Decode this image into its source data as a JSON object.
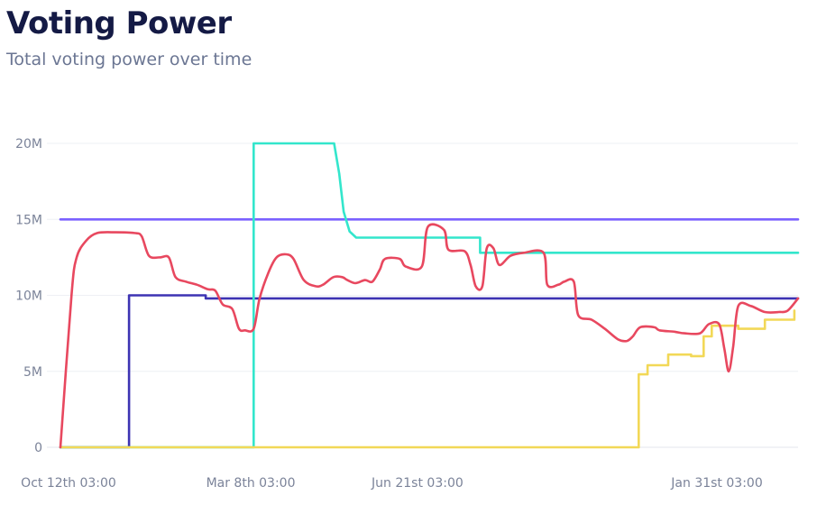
{
  "header": {
    "title": "Voting Power",
    "subtitle": "Total voting power over time"
  },
  "chart_data": {
    "type": "line",
    "title": "Voting Power",
    "subtitle": "Total voting power over time",
    "xlabel": "",
    "ylabel": "",
    "x_domain": [
      0,
      100
    ],
    "ylim": [
      0,
      20000000
    ],
    "y_ticks": [
      {
        "value": 0,
        "label": "0"
      },
      {
        "value": 5000000,
        "label": "5M"
      },
      {
        "value": 10000000,
        "label": "10M"
      },
      {
        "value": 15000000,
        "label": "15M"
      },
      {
        "value": 20000000,
        "label": "20M"
      }
    ],
    "x_ticks": [
      {
        "value": 1.1,
        "label": "Oct 12th 03:00"
      },
      {
        "value": 25.8,
        "label": "Mar 8th 03:00"
      },
      {
        "value": 48.4,
        "label": "Jun 21st 03:00"
      },
      {
        "value": 89.0,
        "label": "Jan 31st 03:00"
      }
    ],
    "grid": true,
    "legend": "none",
    "series": [
      {
        "color": "#7b61ff",
        "shape": "linear",
        "points": [
          [
            0,
            15000000
          ],
          [
            100,
            15000000
          ]
        ]
      },
      {
        "color": "#3d33b3",
        "shape": "linear",
        "points": [
          [
            0,
            0
          ],
          [
            9.3,
            0
          ],
          [
            9.3,
            10000000
          ],
          [
            19.7,
            10000000
          ],
          [
            19.7,
            9800000
          ],
          [
            100,
            9800000
          ]
        ]
      },
      {
        "color": "#33e6cc",
        "shape": "linear",
        "points": [
          [
            0,
            0
          ],
          [
            26.2,
            0
          ],
          [
            26.2,
            20000000
          ],
          [
            37.1,
            20000000
          ],
          [
            37.8,
            18000000
          ],
          [
            38.4,
            15500000
          ],
          [
            39.2,
            14200000
          ],
          [
            40.1,
            13800000
          ],
          [
            56.9,
            13800000
          ],
          [
            56.9,
            12800000
          ],
          [
            100,
            12800000
          ]
        ]
      },
      {
        "color": "#f2d857",
        "shape": "linear",
        "points": [
          [
            0,
            0
          ],
          [
            78.4,
            0
          ],
          [
            78.4,
            4800000
          ],
          [
            79.6,
            4800000
          ],
          [
            79.6,
            5400000
          ],
          [
            82.4,
            5400000
          ],
          [
            82.4,
            6100000
          ],
          [
            85.5,
            6100000
          ],
          [
            85.5,
            6000000
          ],
          [
            87.2,
            6000000
          ],
          [
            87.2,
            7300000
          ],
          [
            88.3,
            7300000
          ],
          [
            88.3,
            8000000
          ],
          [
            91.9,
            8000000
          ],
          [
            91.9,
            7800000
          ],
          [
            95.5,
            7800000
          ],
          [
            95.5,
            8400000
          ],
          [
            99.5,
            8400000
          ],
          [
            99.5,
            9000000
          ]
        ]
      },
      {
        "color": "#e8485f",
        "shape": "smooth",
        "points": [
          [
            0,
            0
          ],
          [
            1.5,
            10000000
          ],
          [
            2.2,
            12500000
          ],
          [
            3.5,
            13600000
          ],
          [
            5.0,
            14100000
          ],
          [
            7.5,
            14150000
          ],
          [
            10.0,
            14100000
          ],
          [
            11.0,
            13900000
          ],
          [
            12.0,
            12600000
          ],
          [
            13.5,
            12500000
          ],
          [
            14.7,
            12500000
          ],
          [
            15.6,
            11200000
          ],
          [
            17.0,
            10900000
          ],
          [
            18.5,
            10700000
          ],
          [
            20.0,
            10400000
          ],
          [
            21.0,
            10300000
          ],
          [
            22.0,
            9400000
          ],
          [
            23.3,
            9100000
          ],
          [
            24.2,
            7800000
          ],
          [
            25.0,
            7700000
          ],
          [
            26.2,
            7800000
          ],
          [
            27.0,
            9800000
          ],
          [
            28.2,
            11500000
          ],
          [
            29.3,
            12500000
          ],
          [
            30.6,
            12700000
          ],
          [
            31.6,
            12400000
          ],
          [
            33.0,
            11000000
          ],
          [
            34.6,
            10600000
          ],
          [
            35.6,
            10700000
          ],
          [
            37.0,
            11200000
          ],
          [
            38.2,
            11200000
          ],
          [
            38.9,
            11000000
          ],
          [
            40.0,
            10800000
          ],
          [
            41.3,
            11000000
          ],
          [
            42.3,
            10900000
          ],
          [
            43.3,
            11700000
          ],
          [
            44.0,
            12400000
          ],
          [
            46.0,
            12400000
          ],
          [
            46.8,
            11900000
          ],
          [
            49.0,
            11900000
          ],
          [
            49.8,
            14500000
          ],
          [
            52.0,
            14300000
          ],
          [
            52.6,
            13000000
          ],
          [
            54.8,
            12900000
          ],
          [
            55.6,
            12000000
          ],
          [
            56.3,
            10600000
          ],
          [
            57.2,
            10600000
          ],
          [
            57.8,
            13100000
          ],
          [
            58.7,
            13100000
          ],
          [
            59.5,
            12000000
          ],
          [
            61.0,
            12600000
          ],
          [
            62.8,
            12800000
          ],
          [
            65.5,
            12800000
          ],
          [
            66.0,
            10700000
          ],
          [
            67.5,
            10700000
          ],
          [
            68.3,
            10900000
          ],
          [
            69.6,
            10900000
          ],
          [
            70.2,
            8700000
          ],
          [
            72.0,
            8400000
          ],
          [
            73.8,
            7800000
          ],
          [
            75.6,
            7100000
          ],
          [
            76.8,
            7000000
          ],
          [
            77.6,
            7300000
          ],
          [
            78.6,
            7900000
          ],
          [
            80.5,
            7900000
          ],
          [
            81.2,
            7700000
          ],
          [
            83.3,
            7600000
          ],
          [
            84.6,
            7500000
          ],
          [
            86.7,
            7500000
          ],
          [
            87.9,
            8100000
          ],
          [
            89.3,
            8100000
          ],
          [
            90.0,
            6500000
          ],
          [
            90.6,
            5000000
          ],
          [
            91.2,
            6600000
          ],
          [
            91.9,
            9300000
          ],
          [
            93.6,
            9300000
          ],
          [
            95.5,
            8900000
          ],
          [
            97.4,
            8900000
          ],
          [
            98.6,
            9000000
          ],
          [
            100,
            9800000
          ]
        ]
      }
    ]
  }
}
